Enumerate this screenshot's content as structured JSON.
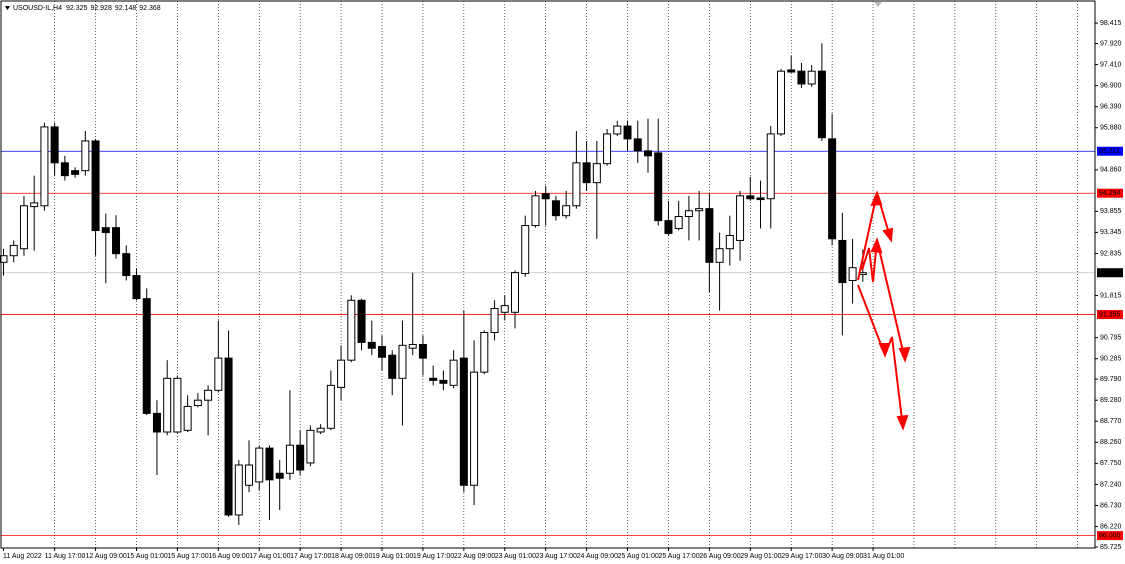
{
  "chart_data": {
    "type": "candlestick",
    "title": "USOUSD-IL,H4",
    "categories": [
      "11 Aug 2022",
      null,
      null,
      null,
      null,
      "11 Aug 17:00",
      null,
      null,
      null,
      "12 Aug 09:00",
      null,
      null,
      null,
      "15 Aug 01:00",
      null,
      null,
      null,
      "15 Aug 17:00",
      null,
      null,
      null,
      "16 Aug 09:00",
      null,
      null,
      null,
      "17 Aug 01:00",
      null,
      null,
      null,
      "17 Aug 17:00",
      null,
      null,
      null,
      "18 Aug 09:00",
      null,
      null,
      null,
      "19 Aug 01:00",
      null,
      null,
      null,
      "19 Aug 17:00",
      null,
      null,
      null,
      "22 Aug 09:00",
      null,
      null,
      null,
      "23 Aug 01:00",
      null,
      null,
      null,
      "23 Aug 17:00",
      null,
      null,
      null,
      "24 Aug 09:00",
      null,
      null,
      null,
      "25 Aug 01:00",
      null,
      null,
      null,
      "25 Aug 17:00",
      null,
      null,
      null,
      "26 Aug 09:00",
      null,
      null,
      null,
      "29 Aug 01:00",
      null,
      null,
      null,
      "29 Aug 17:00",
      null,
      null,
      null,
      "30 Aug 09:00",
      null,
      null,
      null,
      "31 Aug 01:00"
    ],
    "open": [
      92.62,
      92.78,
      92.95,
      93.97,
      93.99,
      95.9,
      95.03,
      94.84,
      94.84,
      95.56,
      93.46,
      93.46,
      92.83,
      92.3,
      91.74,
      88.96,
      88.51,
      88.51,
      88.55,
      89.15,
      89.28,
      89.52,
      90.3,
      86.5,
      87.22,
      87.3,
      88.12,
      87.51,
      87.51,
      88.19,
      87.76,
      88.51,
      88.6,
      89.59,
      90.25,
      91.7,
      90.68,
      90.58,
      90.37,
      89.81,
      90.54,
      90.63,
      89.81,
      89.76,
      89.64,
      90.3,
      87.22,
      89.96,
      90.92,
      91.41,
      91.41,
      92.35,
      93.51,
      94.28,
      94.11,
      93.75,
      93.99,
      95.03,
      94.55,
      95.01,
      95.73,
      95.92,
      95.61,
      95.32,
      95.27,
      93.63,
      93.44,
      93.73,
      93.87,
      93.92,
      92.62,
      92.95,
      93.15,
      94.23,
      94.18,
      94.16,
      95.73,
      97.28,
      97.25,
      96.94,
      97.25,
      95.61,
      93.15,
      92.18,
      92.325,
      null
    ],
    "high": [
      92.95,
      93.15,
      94.23,
      94.72,
      96.0,
      96.0,
      95.2,
      94.92,
      95.8,
      95.61,
      93.8,
      93.76,
      93.03,
      92.47,
      91.99,
      89.28,
      90.25,
      89.88,
      89.4,
      89.45,
      89.64,
      91.21,
      90.97,
      87.83,
      88.31,
      88.17,
      88.19,
      87.83,
      89.52,
      88.55,
      88.67,
      88.7,
      90.0,
      90.61,
      91.82,
      91.74,
      91.21,
      90.85,
      90.49,
      91.21,
      92.37,
      90.85,
      90.12,
      90.0,
      90.49,
      91.45,
      90.73,
      90.97,
      91.7,
      91.82,
      92.42,
      93.75,
      94.35,
      94.47,
      94.23,
      94.35,
      95.8,
      95.56,
      95.56,
      95.85,
      96.05,
      96.05,
      96.05,
      96.1,
      96.1,
      94.11,
      94.11,
      94.23,
      94.35,
      94.31,
      93.34,
      93.75,
      94.35,
      94.69,
      94.6,
      95.92,
      97.3,
      97.62,
      97.45,
      97.4,
      97.93,
      96.22,
      93.82,
      93.19,
      92.928,
      null
    ],
    "low": [
      92.3,
      92.62,
      92.78,
      92.9,
      93.87,
      94.72,
      94.6,
      94.67,
      94.72,
      92.78,
      92.11,
      92.71,
      92.18,
      91.7,
      88.92,
      87.47,
      88.43,
      88.48,
      88.51,
      89.11,
      88.43,
      89.47,
      86.45,
      86.26,
      87.05,
      87.1,
      86.38,
      86.62,
      87.35,
      87.47,
      87.68,
      88.46,
      88.55,
      89.28,
      90.2,
      90.49,
      90.37,
      90.0,
      89.4,
      88.67,
      90.37,
      89.88,
      89.64,
      89.52,
      89.57,
      87.05,
      86.74,
      89.91,
      90.73,
      91.21,
      91.02,
      92.27,
      93.46,
      93.51,
      93.63,
      93.68,
      93.92,
      94.35,
      93.19,
      94.96,
      95.68,
      95.32,
      95.03,
      94.79,
      93.51,
      93.27,
      93.39,
      93.15,
      93.15,
      91.89,
      91.45,
      92.54,
      92.66,
      94.11,
      93.44,
      93.44,
      95.68,
      97.21,
      96.84,
      96.87,
      95.56,
      93.03,
      90.85,
      91.62,
      92.148,
      null
    ],
    "close": [
      92.78,
      93.03,
      93.99,
      94.06,
      95.9,
      95.03,
      94.72,
      94.75,
      95.56,
      93.39,
      93.34,
      92.83,
      92.3,
      91.74,
      88.96,
      88.51,
      89.81,
      89.81,
      89.13,
      89.28,
      89.52,
      90.3,
      86.5,
      87.71,
      87.71,
      88.12,
      87.35,
      87.39,
      88.19,
      87.59,
      88.55,
      88.6,
      89.64,
      90.25,
      91.7,
      90.68,
      90.54,
      90.32,
      89.81,
      90.61,
      90.63,
      90.3,
      89.76,
      89.69,
      90.25,
      87.22,
      89.96,
      90.92,
      91.5,
      91.57,
      92.37,
      93.51,
      94.23,
      94.16,
      93.75,
      93.99,
      95.03,
      94.55,
      95.01,
      95.73,
      95.92,
      95.61,
      95.32,
      95.2,
      93.63,
      93.32,
      93.73,
      93.87,
      93.92,
      92.62,
      92.95,
      93.27,
      94.23,
      94.16,
      94.14,
      95.73,
      97.25,
      97.23,
      96.94,
      97.25,
      95.64,
      93.19,
      92.13,
      92.49,
      92.368,
      null
    ],
    "ylim": [
      85.7,
      98.95
    ],
    "yticks": [
      98.415,
      {
        "value": 97.92,
        "label": "97.920"
      },
      {
        "value": 97.41,
        "label": "97.410"
      },
      {
        "value": 96.9,
        "label": "96.900"
      },
      {
        "value": 96.39,
        "label": "96.390"
      },
      {
        "value": 95.88,
        "label": "95.880"
      },
      {
        "value": 94.86,
        "label": "94.860"
      },
      93.855,
      93.345,
      92.835,
      91.815,
      90.795,
      90.285,
      {
        "value": 89.79,
        "label": "89.790"
      },
      {
        "value": 89.28,
        "label": "89.280"
      },
      {
        "value": 88.77,
        "label": "88.770"
      },
      {
        "value": 88.26,
        "label": "88.260"
      },
      {
        "value": 87.75,
        "label": "87.750"
      },
      {
        "value": 87.24,
        "label": "87.240"
      },
      {
        "value": 86.73,
        "label": "86.730"
      },
      {
        "value": 86.22,
        "label": "86.220"
      },
      85.725
    ],
    "hlines": [
      {
        "value": 95.311,
        "color": "#0000ff"
      },
      {
        "value": 94.294,
        "color": "#ff0000"
      },
      {
        "value": 91.355,
        "color": "#ff0000"
      },
      {
        "value": 86,
        "label": "86.000",
        "color": "#ff0000"
      }
    ],
    "up_color": "#ffffff",
    "down_color": "#000000",
    "grid": true
  }
}
